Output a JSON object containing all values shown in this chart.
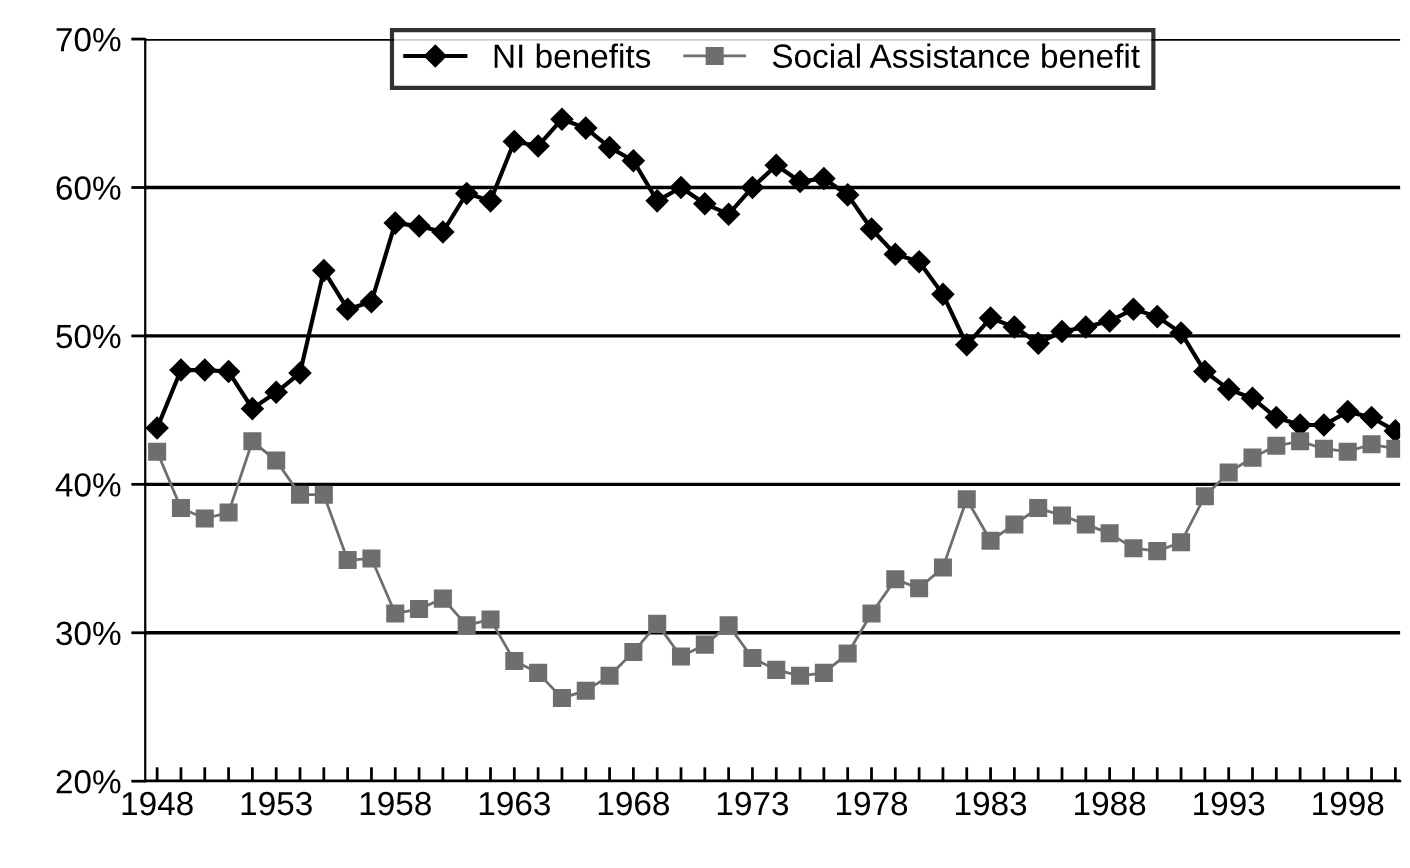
{
  "chart_data": {
    "type": "line",
    "x": [
      1948,
      1949,
      1950,
      1951,
      1952,
      1953,
      1954,
      1955,
      1956,
      1957,
      1958,
      1959,
      1960,
      1961,
      1962,
      1963,
      1964,
      1965,
      1966,
      1967,
      1968,
      1969,
      1970,
      1971,
      1972,
      1973,
      1974,
      1975,
      1976,
      1977,
      1978,
      1979,
      1980,
      1981,
      1982,
      1983,
      1984,
      1985,
      1986,
      1987,
      1988,
      1989,
      1990,
      1991,
      1992,
      1993,
      1994,
      1995,
      1996,
      1997,
      1998,
      1999,
      2000
    ],
    "series": [
      {
        "name": "NI benefits",
        "color": "#000000",
        "marker": "diamond",
        "values": [
          43.8,
          47.7,
          47.7,
          47.6,
          45.1,
          46.2,
          47.5,
          54.4,
          51.8,
          52.3,
          57.6,
          57.4,
          57.0,
          59.6,
          59.1,
          63.1,
          62.8,
          64.6,
          64.0,
          62.7,
          61.8,
          59.1,
          60.0,
          58.9,
          58.2,
          60.0,
          61.5,
          60.4,
          60.6,
          59.5,
          57.2,
          55.5,
          55.0,
          52.8,
          49.4,
          51.2,
          50.6,
          49.5,
          50.3,
          50.6,
          51.0,
          51.8,
          51.3,
          50.2,
          47.6,
          46.4,
          45.8,
          44.5,
          44.0,
          44.0,
          44.9,
          44.5,
          43.6
        ]
      },
      {
        "name": "Social Assistance benefit",
        "color": "#6e6e6e",
        "marker": "square",
        "values": [
          42.2,
          38.4,
          37.7,
          38.1,
          42.9,
          41.6,
          39.3,
          39.3,
          34.9,
          35.0,
          31.3,
          31.6,
          32.3,
          30.5,
          30.9,
          28.1,
          27.3,
          25.6,
          26.1,
          27.1,
          28.7,
          30.6,
          28.4,
          29.2,
          30.5,
          28.3,
          27.5,
          27.1,
          27.3,
          28.6,
          31.3,
          33.6,
          33.0,
          34.4,
          39.0,
          36.2,
          37.3,
          38.4,
          37.9,
          37.3,
          36.7,
          35.7,
          35.5,
          36.1,
          39.2,
          40.8,
          41.8,
          42.6,
          42.9,
          42.4,
          42.2,
          42.7,
          42.4
        ]
      }
    ],
    "xlim": [
      1947.5,
      2000.2
    ],
    "xticks": [
      1948,
      {
        "value": 1949,
        "label": null
      },
      {
        "value": 1950,
        "label": null
      },
      {
        "value": 1951,
        "label": null
      },
      {
        "value": 1952,
        "label": null
      },
      1953,
      {
        "value": 1954,
        "label": null
      },
      {
        "value": 1955,
        "label": null
      },
      {
        "value": 1956,
        "label": null
      },
      {
        "value": 1957,
        "label": null
      },
      1958,
      {
        "value": 1959,
        "label": null
      },
      {
        "value": 1960,
        "label": null
      },
      {
        "value": 1961,
        "label": null
      },
      {
        "value": 1962,
        "label": null
      },
      1963,
      {
        "value": 1964,
        "label": null
      },
      {
        "value": 1965,
        "label": null
      },
      {
        "value": 1966,
        "label": null
      },
      {
        "value": 1967,
        "label": null
      },
      1968,
      {
        "value": 1969,
        "label": null
      },
      {
        "value": 1970,
        "label": null
      },
      {
        "value": 1971,
        "label": null
      },
      {
        "value": 1972,
        "label": null
      },
      1973,
      {
        "value": 1974,
        "label": null
      },
      {
        "value": 1975,
        "label": null
      },
      {
        "value": 1976,
        "label": null
      },
      {
        "value": 1977,
        "label": null
      },
      1978,
      {
        "value": 1979,
        "label": null
      },
      {
        "value": 1980,
        "label": null
      },
      {
        "value": 1981,
        "label": null
      },
      {
        "value": 1982,
        "label": null
      },
      1983,
      {
        "value": 1984,
        "label": null
      },
      {
        "value": 1985,
        "label": null
      },
      {
        "value": 1986,
        "label": null
      },
      {
        "value": 1987,
        "label": null
      },
      1988,
      {
        "value": 1989,
        "label": null
      },
      {
        "value": 1990,
        "label": null
      },
      {
        "value": 1991,
        "label": null
      },
      {
        "value": 1992,
        "label": null
      },
      1993,
      {
        "value": 1994,
        "label": null
      },
      {
        "value": 1995,
        "label": null
      },
      {
        "value": 1996,
        "label": null
      },
      {
        "value": 1997,
        "label": null
      },
      1998,
      {
        "value": 1999,
        "label": null
      },
      {
        "value": 2000,
        "label": null
      }
    ],
    "ylim": [
      20,
      70
    ],
    "yticks": [
      {
        "value": 20,
        "label": "20%"
      },
      {
        "value": 30,
        "label": "30%"
      },
      {
        "value": 40,
        "label": "40%"
      },
      {
        "value": 50,
        "label": "50%"
      },
      {
        "value": 60,
        "label": "60%"
      },
      {
        "value": 70,
        "label": "70%"
      }
    ],
    "grid": "y",
    "legend": "top",
    "line_style": "solid"
  }
}
